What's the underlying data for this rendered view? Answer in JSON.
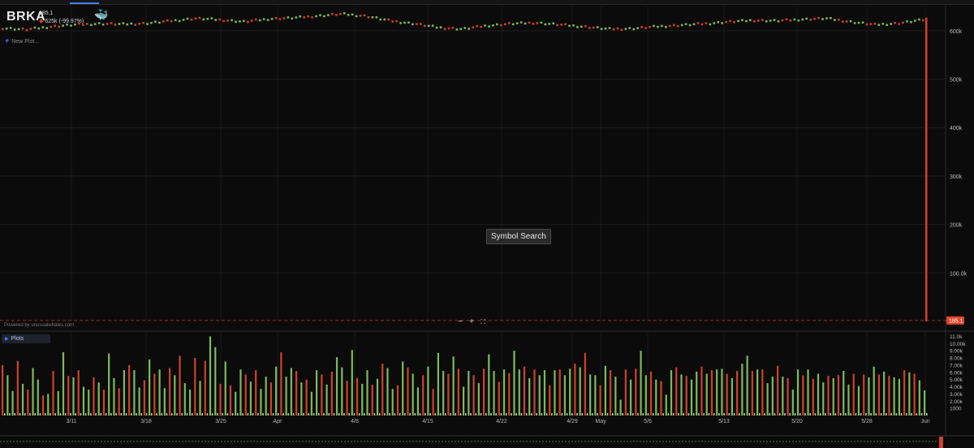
{
  "app": {
    "symbol": "BRKA",
    "last_price": "185.1",
    "change_text": "625k (-99.97%)",
    "new_plot_label": "New Plot...",
    "symbol_search_label": "Symbol Search",
    "powered_by": "Powered by unusualwhales.com",
    "plots_label": "Plots",
    "zoom_out_label": "−",
    "zoom_in_label": "+",
    "fullscreen_icon": "fullscreen-icon",
    "whale_icon": "whale-logo-icon"
  },
  "colors": {
    "up": "#7dbb5a",
    "down": "#d1402a",
    "accent": "#4a7cff",
    "price_tag": "#e0452b"
  },
  "chart_data": [
    {
      "type": "line",
      "description_series": "price",
      "x_tick_labels": [
        "3/11",
        "3/18",
        "3/25",
        "Apr",
        "4/8",
        "4/15",
        "4/22",
        "4/29",
        "May",
        "5/6",
        "5/13",
        "5/20",
        "5/28",
        "Jun"
      ],
      "y_tick_labels": [
        "600k",
        "500k",
        "400k",
        "300k",
        "200k",
        "100.0k"
      ],
      "ylim": [
        0,
        650000
      ],
      "price_label": "185.1",
      "x": [
        "3/5",
        "3/7",
        "3/9",
        "3/11",
        "3/13",
        "3/15",
        "3/18",
        "3/20",
        "3/22",
        "3/25",
        "3/27",
        "3/29",
        "Apr",
        "4/3",
        "4/5",
        "4/8",
        "4/10",
        "4/12",
        "4/15",
        "4/17",
        "4/19",
        "4/22",
        "4/24",
        "4/26",
        "4/29",
        "5/1",
        "5/3",
        "5/6",
        "5/8",
        "5/10",
        "5/13",
        "5/15",
        "5/17",
        "5/20",
        "5/22",
        "5/24",
        "5/28",
        "5/30",
        "5/31"
      ],
      "values": [
        605000,
        602000,
        608000,
        612000,
        614000,
        613000,
        615000,
        620000,
        625000,
        622000,
        618000,
        624000,
        626000,
        630000,
        634000,
        630000,
        620000,
        614000,
        606000,
        603000,
        610000,
        614000,
        616000,
        612000,
        608000,
        603000,
        604000,
        608000,
        611000,
        614000,
        618000,
        621000,
        620000,
        623000,
        625000,
        618000,
        612000,
        615000,
        622000
      ],
      "final_value": 185.1
    },
    {
      "type": "bar",
      "description_series": "volume",
      "y_tick_labels": [
        "11.0k",
        "10.00k",
        "9.00k",
        "8.00k",
        "7.00k",
        "6.00k",
        "5.00k",
        "4.00k",
        "3.00k",
        "2.00k",
        "1000"
      ],
      "ylim": [
        0,
        11500
      ],
      "values": [
        7000,
        5600,
        3400,
        7600,
        4400,
        3600,
        6600,
        5000,
        2800,
        3000,
        6200,
        3400,
        8800,
        5500,
        5300,
        6300,
        4000,
        3600,
        5300,
        4600,
        3600,
        8600,
        5200,
        3800,
        6300,
        7000,
        6300,
        3900,
        4900,
        7800,
        5800,
        6400,
        3800,
        6600,
        5600,
        8300,
        4500,
        3600,
        8000,
        4800,
        7600,
        11000,
        9500,
        4400,
        7500,
        4200,
        3300,
        6400,
        5700,
        4700,
        6300,
        3700,
        5400,
        4600,
        6800,
        8800,
        5400,
        6600,
        6200,
        4600,
        5000,
        3300,
        6300,
        5700,
        4300,
        6100,
        8100,
        6700,
        4800,
        9100,
        5200,
        4400,
        6300,
        4300,
        5100,
        7200,
        6600,
        3700,
        4200,
        7500,
        6700,
        5800,
        3900,
        5600,
        6800,
        3700,
        8700,
        6200,
        5800,
        8200,
        6500,
        4000,
        6200,
        5600,
        4500,
        6500,
        8500,
        6200,
        4700,
        6400,
        5900,
        9000,
        6400,
        6800,
        5200,
        6400,
        5600,
        6300,
        4200,
        6300,
        6400,
        5600,
        6500,
        7200,
        6700,
        8700,
        5700,
        5600,
        4200,
        6900,
        6300,
        5400,
        2200,
        6400,
        5000,
        6500,
        9000,
        5600,
        6100,
        5000,
        4800,
        2900,
        6300,
        6700,
        5700,
        5500,
        5000,
        6100,
        6800,
        5800,
        6300,
        6400,
        6500,
        5800,
        5200,
        6200,
        7200,
        8300,
        6200,
        6400,
        6400,
        4500,
        5400,
        6900,
        5400,
        5200,
        3600,
        6400,
        5600,
        6400,
        5100,
        5800,
        4600,
        5500,
        5200,
        5600,
        6200,
        4300,
        5800,
        4100,
        5700,
        5300,
        6800,
        5700,
        6100,
        5500,
        5300,
        5100,
        6300,
        6000,
        5800,
        4900,
        3500
      ]
    },
    {
      "type": "line",
      "description_series": "navigator",
      "values": [
        0.5,
        0.5,
        0.5,
        0.5,
        0.5,
        0.5,
        0.5,
        0.5,
        0.5,
        0.5
      ]
    }
  ]
}
